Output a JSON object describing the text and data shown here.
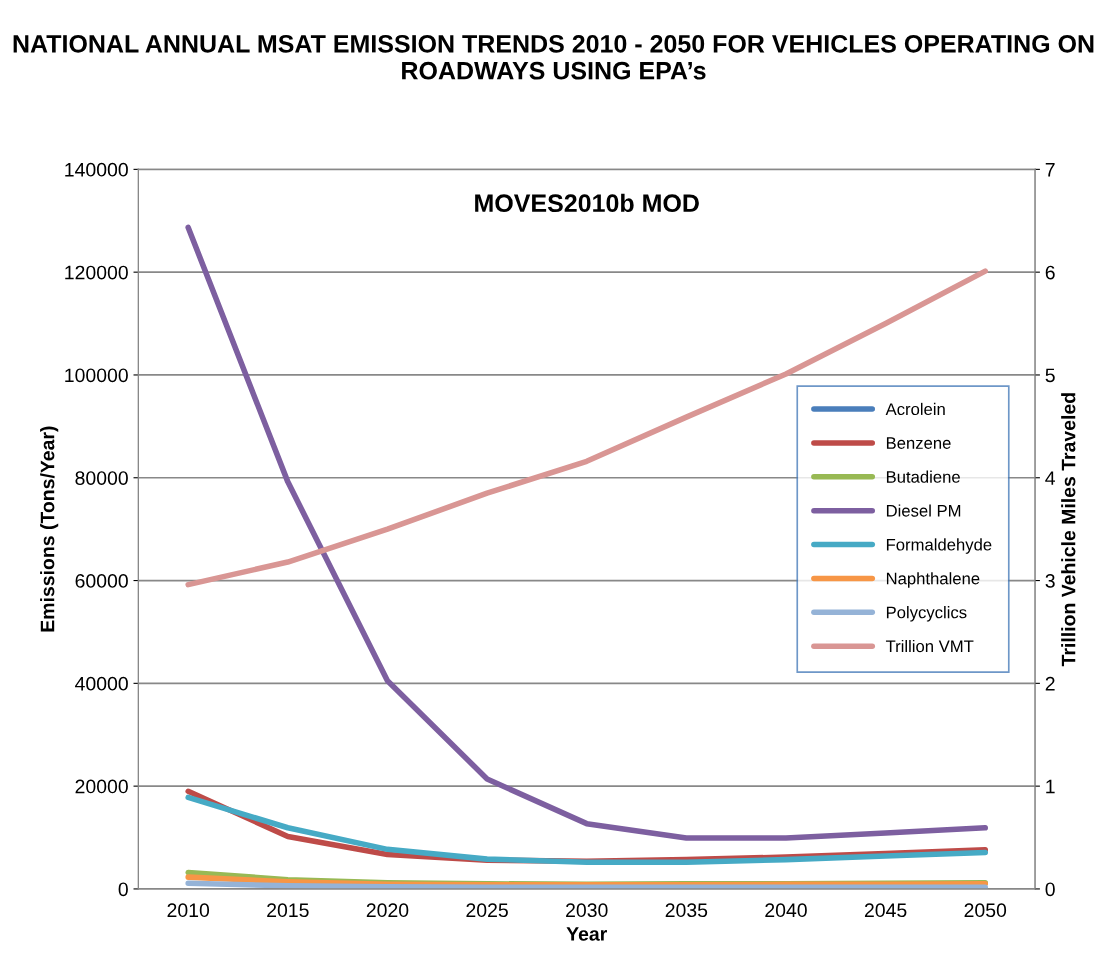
{
  "chart_data": {
    "type": "line",
    "title": "NATIONAL ANNUAL MSAT EMISSION TRENDS 2010 - 2050 FOR VEHICLES OPERATING ON ROADWAYS USING EPA’s",
    "subtitle": "MOVES2010b MOD",
    "xlabel": "Year",
    "ylabel": "Emissions (Tons/Year)",
    "y2label": "Trillion Vehicle Miles Traveled",
    "categories": [
      "2010",
      "2015",
      "2020",
      "2025",
      "2030",
      "2035",
      "2040",
      "2045",
      "2050"
    ],
    "series": [
      {
        "name": "Acrolein",
        "color": "#4a7ebb",
        "values": [
          null,
          null,
          null,
          null,
          null,
          null,
          null,
          null,
          null
        ]
      },
      {
        "name": "Benzene",
        "color": "#be4b48",
        "values": [
          19000,
          10200,
          6700,
          5600,
          5400,
          5700,
          6200,
          6900,
          7600
        ]
      },
      {
        "name": "Butadiene",
        "color": "#98b954",
        "values": [
          3200,
          1800,
          1200,
          1000,
          900,
          1000,
          1000,
          1100,
          1200
        ]
      },
      {
        "name": "Diesel PM",
        "color": "#7d5fa0",
        "values": [
          128700,
          79200,
          40500,
          21400,
          12700,
          9900,
          9900,
          10900,
          11900
        ]
      },
      {
        "name": "Formaldehyde",
        "color": "#46aac5",
        "values": [
          17800,
          11900,
          7700,
          5800,
          5200,
          5200,
          5700,
          6400,
          7100
        ]
      },
      {
        "name": "Naphthalene",
        "color": "#f79646",
        "values": [
          2300,
          1400,
          900,
          800,
          800,
          800,
          900,
          900,
          1000
        ]
      },
      {
        "name": "Polycyclics",
        "color": "#95b3d7",
        "values": [
          1100,
          600,
          400,
          300,
          300,
          300,
          300,
          300,
          300
        ]
      },
      {
        "name": "Trillion VMT",
        "color": "#d99694",
        "axis": "y2",
        "values": [
          2.96,
          3.18,
          3.5,
          3.85,
          4.16,
          4.59,
          5.01,
          5.5,
          6.01
        ]
      }
    ],
    "ylim": [
      0,
      140000
    ],
    "yticks": [
      0,
      20000,
      40000,
      60000,
      80000,
      100000,
      120000,
      140000
    ],
    "y2lim": [
      0,
      7
    ],
    "y2ticks": [
      0,
      1,
      2,
      3,
      4,
      5,
      6,
      7
    ],
    "grid": "y",
    "legend": "right",
    "marker": "none",
    "line_style": "solid"
  }
}
